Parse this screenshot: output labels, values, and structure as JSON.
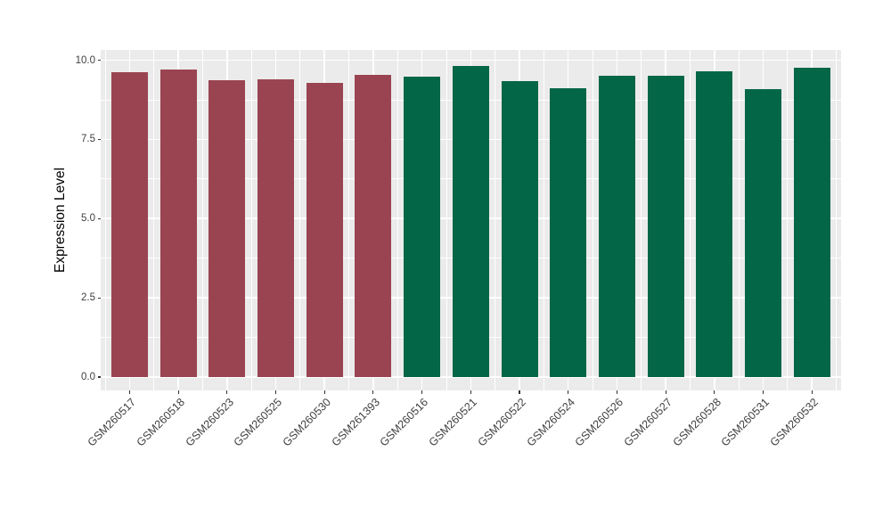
{
  "chart_data": {
    "type": "bar",
    "title": "",
    "xlabel": "",
    "ylabel": "Expression Level",
    "ylim": [
      0,
      10.3
    ],
    "yticks": [
      0,
      2.5,
      5,
      7.5,
      10
    ],
    "ytick_labels": [
      "0.0",
      "2.5",
      "5.0",
      "7.5",
      "10.0"
    ],
    "yminor_ticks": [
      1.25,
      3.75,
      6.25,
      8.75
    ],
    "grid": "white major and minor gridlines on gray panel",
    "legend_position": "none",
    "categories": [
      "GSM260517",
      "GSM260518",
      "GSM260523",
      "GSM260525",
      "GSM260530",
      "GSM261393",
      "GSM260516",
      "GSM260521",
      "GSM260522",
      "GSM260524",
      "GSM260526",
      "GSM260527",
      "GSM260528",
      "GSM260531",
      "GSM260532"
    ],
    "values": [
      9.62,
      9.71,
      9.38,
      9.4,
      9.29,
      9.53,
      9.48,
      9.81,
      9.34,
      9.1,
      9.5,
      9.52,
      9.64,
      9.08,
      9.76
    ],
    "bar_groups": [
      "A",
      "A",
      "A",
      "A",
      "A",
      "A",
      "B",
      "B",
      "B",
      "B",
      "B",
      "B",
      "B",
      "B",
      "B"
    ],
    "group_colors": {
      "A": "#9A4451",
      "B": "#036647"
    },
    "panel_background": "#EBEBEB",
    "gridline_color": "#FFFFFF",
    "tick_label_color": "#404040",
    "axis_title_color": "#000000"
  }
}
